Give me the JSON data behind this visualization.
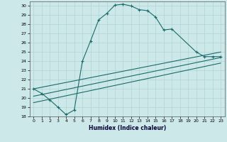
{
  "xlabel": "Humidex (Indice chaleur)",
  "ylabel": "",
  "xlim": [
    -0.5,
    23.5
  ],
  "ylim": [
    18,
    30.5
  ],
  "xticks": [
    0,
    1,
    2,
    3,
    4,
    5,
    6,
    7,
    8,
    9,
    10,
    11,
    12,
    13,
    14,
    15,
    16,
    17,
    18,
    19,
    20,
    21,
    22,
    23
  ],
  "yticks": [
    18,
    19,
    20,
    21,
    22,
    23,
    24,
    25,
    26,
    27,
    28,
    29,
    30
  ],
  "bg_color": "#cde8e8",
  "line_color": "#1a6b6b",
  "grid_color": "#b0d4d4",
  "curve_x": [
    0,
    1,
    2,
    3,
    4,
    5,
    6,
    7,
    8,
    9,
    10,
    11,
    12,
    13,
    14,
    15,
    16,
    17,
    20,
    21,
    22,
    23
  ],
  "curve_y": [
    21.0,
    20.5,
    19.8,
    19.0,
    18.2,
    18.7,
    24.0,
    26.2,
    28.5,
    29.2,
    30.1,
    30.2,
    30.0,
    29.6,
    29.5,
    28.8,
    27.4,
    27.5,
    25.0,
    24.5,
    24.5,
    24.5
  ],
  "line1_x": [
    0,
    23
  ],
  "line1_y": [
    21.0,
    25.0
  ],
  "line2_x": [
    0,
    23
  ],
  "line2_y": [
    20.2,
    24.4
  ],
  "line3_x": [
    0,
    23
  ],
  "line3_y": [
    19.5,
    23.8
  ]
}
